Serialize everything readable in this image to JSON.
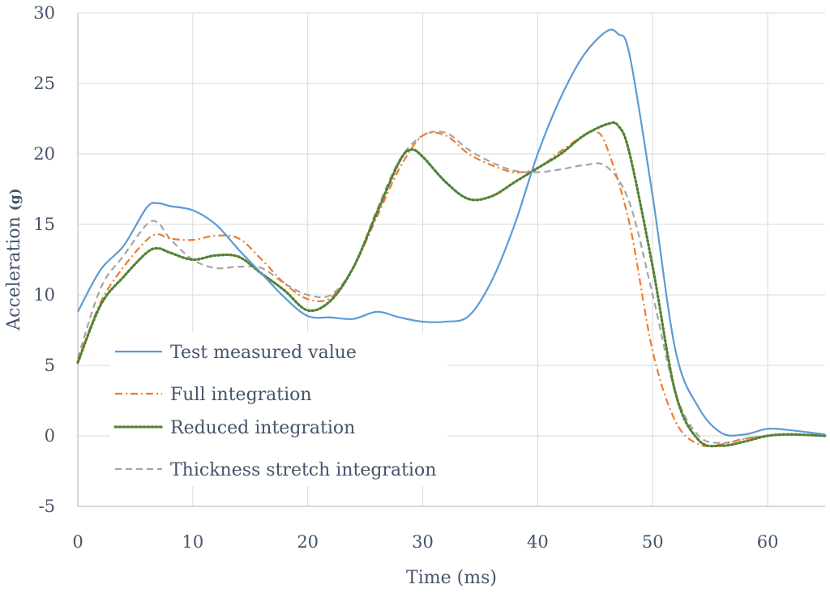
{
  "chart_data": {
    "type": "line",
    "xlabel": "Time (ms)",
    "ylabel_main": "Acceleration ",
    "ylabel_unit": "(g)",
    "xlim": [
      0,
      65
    ],
    "ylim": [
      -5,
      30
    ],
    "x_ticks": [
      "0",
      "10",
      "20",
      "30",
      "40",
      "50",
      "60"
    ],
    "y_ticks": [
      "-5",
      "0",
      "5",
      "10",
      "15",
      "20",
      "25",
      "30"
    ],
    "grid": true,
    "legend_placement": "lower-left",
    "series": [
      {
        "name": "Test measured value",
        "color": "#5b9bd5",
        "style": "solid",
        "points": [
          [
            0,
            8.8
          ],
          [
            2,
            11.8
          ],
          [
            4,
            13.5
          ],
          [
            6,
            16.2
          ],
          [
            7,
            16.5
          ],
          [
            8,
            16.3
          ],
          [
            10,
            16.0
          ],
          [
            12,
            15.0
          ],
          [
            14,
            13.2
          ],
          [
            16,
            11.5
          ],
          [
            18,
            9.8
          ],
          [
            20,
            8.5
          ],
          [
            22,
            8.4
          ],
          [
            24,
            8.3
          ],
          [
            26,
            8.8
          ],
          [
            28,
            8.4
          ],
          [
            30,
            8.1
          ],
          [
            32,
            8.1
          ],
          [
            34,
            8.5
          ],
          [
            36,
            11.0
          ],
          [
            38,
            15.0
          ],
          [
            40,
            20.0
          ],
          [
            42,
            24.0
          ],
          [
            44,
            27.0
          ],
          [
            46,
            28.7
          ],
          [
            47,
            28.5
          ],
          [
            48,
            27.0
          ],
          [
            50,
            17.0
          ],
          [
            52,
            6.0
          ],
          [
            54,
            2.0
          ],
          [
            56,
            0.2
          ],
          [
            58,
            0.1
          ],
          [
            60,
            0.5
          ],
          [
            62,
            0.4
          ],
          [
            65,
            0.1
          ]
        ]
      },
      {
        "name": "Full integration",
        "color": "#ed7d31",
        "style": "dashdot",
        "points": [
          [
            0,
            5.3
          ],
          [
            2,
            9.5
          ],
          [
            4,
            12.0
          ],
          [
            6,
            13.9
          ],
          [
            7,
            14.3
          ],
          [
            8,
            14.0
          ],
          [
            10,
            13.9
          ],
          [
            12,
            14.2
          ],
          [
            14,
            14.0
          ],
          [
            16,
            12.5
          ],
          [
            18,
            10.8
          ],
          [
            20,
            9.7
          ],
          [
            22,
            9.8
          ],
          [
            24,
            12.0
          ],
          [
            26,
            15.5
          ],
          [
            28,
            19.0
          ],
          [
            30,
            21.3
          ],
          [
            32,
            21.3
          ],
          [
            34,
            20.0
          ],
          [
            36,
            19.2
          ],
          [
            38,
            18.7
          ],
          [
            40,
            19.0
          ],
          [
            42,
            20.2
          ],
          [
            44,
            21.3
          ],
          [
            45,
            21.6
          ],
          [
            46,
            20.5
          ],
          [
            48,
            15.0
          ],
          [
            50,
            6.0
          ],
          [
            52,
            1.0
          ],
          [
            54,
            -0.6
          ],
          [
            56,
            -0.6
          ],
          [
            58,
            -0.2
          ],
          [
            60,
            0.0
          ],
          [
            62,
            0.1
          ],
          [
            65,
            0.0
          ]
        ]
      },
      {
        "name": "Reduced integration",
        "color": "#548235",
        "style": "dotted",
        "points": [
          [
            0,
            5.2
          ],
          [
            2,
            9.3
          ],
          [
            4,
            11.3
          ],
          [
            6,
            13.0
          ],
          [
            7,
            13.3
          ],
          [
            8,
            13.0
          ],
          [
            10,
            12.5
          ],
          [
            12,
            12.8
          ],
          [
            14,
            12.7
          ],
          [
            16,
            11.5
          ],
          [
            18,
            10.3
          ],
          [
            20,
            8.9
          ],
          [
            22,
            9.6
          ],
          [
            24,
            12.0
          ],
          [
            26,
            15.8
          ],
          [
            28,
            19.5
          ],
          [
            29,
            20.3
          ],
          [
            30,
            19.8
          ],
          [
            32,
            18.0
          ],
          [
            34,
            16.8
          ],
          [
            36,
            17.0
          ],
          [
            38,
            18.0
          ],
          [
            40,
            19.0
          ],
          [
            42,
            20.0
          ],
          [
            44,
            21.3
          ],
          [
            46,
            22.1
          ],
          [
            47,
            22.0
          ],
          [
            48,
            20.0
          ],
          [
            50,
            12.0
          ],
          [
            52,
            3.0
          ],
          [
            54,
            -0.3
          ],
          [
            56,
            -0.7
          ],
          [
            58,
            -0.4
          ],
          [
            60,
            0.0
          ],
          [
            62,
            0.1
          ],
          [
            65,
            0.0
          ]
        ]
      },
      {
        "name": "Thickness stretch integration",
        "color": "#a5a5a5",
        "style": "dashed",
        "points": [
          [
            0,
            5.5
          ],
          [
            2,
            10.5
          ],
          [
            4,
            12.8
          ],
          [
            6,
            15.0
          ],
          [
            7,
            15.1
          ],
          [
            8,
            14.0
          ],
          [
            10,
            12.5
          ],
          [
            12,
            11.9
          ],
          [
            14,
            12.0
          ],
          [
            16,
            11.9
          ],
          [
            18,
            10.8
          ],
          [
            20,
            10.0
          ],
          [
            22,
            10.0
          ],
          [
            24,
            12.0
          ],
          [
            26,
            16.0
          ],
          [
            28,
            19.6
          ],
          [
            30,
            21.3
          ],
          [
            32,
            21.5
          ],
          [
            34,
            20.3
          ],
          [
            36,
            19.4
          ],
          [
            38,
            18.8
          ],
          [
            40,
            18.7
          ],
          [
            42,
            18.9
          ],
          [
            44,
            19.2
          ],
          [
            46,
            19.1
          ],
          [
            48,
            16.5
          ],
          [
            50,
            10.0
          ],
          [
            52,
            3.0
          ],
          [
            54,
            0.0
          ],
          [
            56,
            -0.5
          ],
          [
            58,
            -0.2
          ],
          [
            60,
            0.0
          ],
          [
            62,
            0.1
          ],
          [
            65,
            0.0
          ]
        ]
      }
    ]
  }
}
